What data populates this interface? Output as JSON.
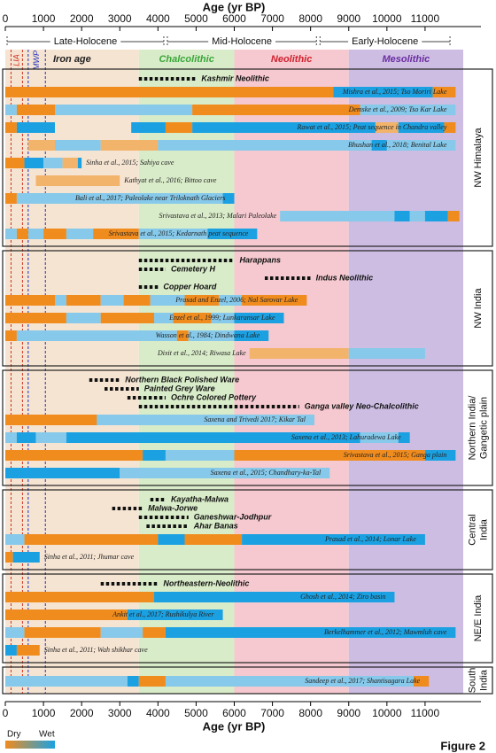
{
  "chart_data": {
    "type": "timeline",
    "x_label": "Age (yr BP)",
    "xlim": [
      0,
      12000
    ],
    "xticks": [
      0,
      1000,
      2000,
      3000,
      4000,
      5000,
      6000,
      7000,
      8000,
      9000,
      10000,
      11000
    ],
    "figure_label": "Figure 2",
    "legend": {
      "dry": "Dry",
      "wet": "Wet",
      "dry_color": "#f08c1e",
      "wet_color": "#1ba1e2"
    },
    "periods": [
      {
        "name": "Late-Holocene",
        "from": 0,
        "to": 4200
      },
      {
        "name": "Mid-Holocene",
        "from": 4200,
        "to": 8200
      },
      {
        "name": "Early-Holocene",
        "from": 8200,
        "to": 11700
      }
    ],
    "zones": [
      {
        "name": "Iron age",
        "from": 0,
        "to": 3500,
        "color": "#f6e4d2",
        "text_color": "#222222"
      },
      {
        "name": "Chalcolithic",
        "from": 3500,
        "to": 6000,
        "color": "#d9ecc9",
        "text_color": "#3aa63a"
      },
      {
        "name": "Neolithic",
        "from": 6000,
        "to": 9000,
        "color": "#f5c9cf",
        "text_color": "#d0202e"
      },
      {
        "name": "Mesolithic",
        "from": 9000,
        "to": 12000,
        "color": "#cdbde3",
        "text_color": "#6a2ca0"
      }
    ],
    "events": [
      {
        "name": "LIA",
        "from": 150,
        "to": 450,
        "color": "#d03020"
      },
      {
        "name": "MWP",
        "from": 600,
        "to": 1050,
        "color": "#2030c0"
      }
    ],
    "regions": [
      {
        "name_lines": [
          "NW Himalaya"
        ],
        "cultures": [
          {
            "name": "Kashmir Neolithic",
            "from": 3500,
            "to": 5000
          }
        ],
        "records": [
          {
            "label": "Mishra et al., 2015; Tso Moriri Lake",
            "segments": [
              [
                0,
                8600,
                "#f08c1e"
              ],
              [
                8600,
                11200,
                "#1ba1e2"
              ],
              [
                11200,
                11800,
                "#f08c1e"
              ]
            ]
          },
          {
            "label": "Demske et al., 2009; Tso Kar Lake",
            "segments": [
              [
                0,
                300,
                "#86c9ea"
              ],
              [
                300,
                1300,
                "#f08c1e"
              ],
              [
                1300,
                4900,
                "#86c9ea"
              ],
              [
                4900,
                9300,
                "#f08c1e"
              ],
              [
                9300,
                11800,
                "#86c9ea"
              ]
            ]
          },
          {
            "label": "Rawat et al., 2015; Peat sequence in Chandra valley",
            "segments": [
              [
                0,
                300,
                "#f08c1e"
              ],
              [
                300,
                1300,
                "#1ba1e2"
              ],
              [
                3300,
                4200,
                "#1ba1e2"
              ],
              [
                4200,
                4900,
                "#f08c1e"
              ],
              [
                4900,
                9700,
                "#1ba1e2"
              ],
              [
                9700,
                10300,
                "#f2b36b"
              ],
              [
                10300,
                11500,
                "#1ba1e2"
              ],
              [
                11500,
                11800,
                "#f08c1e"
              ]
            ]
          },
          {
            "label": "Bhushan et al., 2018; Benital Lake",
            "segments": [
              [
                600,
                1300,
                "#f2b36b"
              ],
              [
                1300,
                2500,
                "#86c9ea"
              ],
              [
                2500,
                4000,
                "#f2b36b"
              ],
              [
                4000,
                9600,
                "#86c9ea"
              ],
              [
                9600,
                10000,
                "#1ba1e2"
              ],
              [
                10000,
                11800,
                "#86c9ea"
              ]
            ]
          },
          {
            "label": "Sinha et al., 2015; Sahiya cave",
            "segments": [
              [
                0,
                500,
                "#f08c1e"
              ],
              [
                500,
                1000,
                "#1ba1e2"
              ],
              [
                1000,
                1500,
                "#86c9ea"
              ],
              [
                1500,
                1900,
                "#f2b36b"
              ],
              [
                1900,
                2000,
                "#1ba1e2"
              ]
            ]
          },
          {
            "label": "Kathyat et al., 2016; Bittoo cave",
            "segments": [
              [
                800,
                3000,
                "#f2b36b"
              ]
            ]
          },
          {
            "label": "Bali et al., 2017; Paleolake near Triloknath Glaciers",
            "segments": [
              [
                0,
                300,
                "#f08c1e"
              ],
              [
                300,
                5700,
                "#86c9ea"
              ],
              [
                5700,
                6000,
                "#1ba1e2"
              ]
            ]
          },
          {
            "label": "Srivastava et al., 2013; Malari Paleolake",
            "segments": [
              [
                7200,
                10200,
                "#86c9ea"
              ],
              [
                10200,
                10600,
                "#1ba1e2"
              ],
              [
                10600,
                11000,
                "#86c9ea"
              ],
              [
                11000,
                11600,
                "#1ba1e2"
              ],
              [
                11600,
                11900,
                "#f08c1e"
              ]
            ]
          },
          {
            "label": "Srivastava et al., 2015; Kedarnath peat sequence",
            "segments": [
              [
                0,
                300,
                "#86c9ea"
              ],
              [
                300,
                600,
                "#f08c1e"
              ],
              [
                600,
                1000,
                "#86c9ea"
              ],
              [
                1000,
                1600,
                "#f08c1e"
              ],
              [
                1600,
                2300,
                "#86c9ea"
              ],
              [
                2300,
                3500,
                "#f08c1e"
              ],
              [
                3500,
                5300,
                "#86c9ea"
              ],
              [
                5300,
                6600,
                "#1ba1e2"
              ]
            ]
          }
        ]
      },
      {
        "name_lines": [
          "NW India"
        ],
        "cultures": [
          {
            "name": "Harappans",
            "from": 3500,
            "to": 6000
          },
          {
            "name": "Cemetery H",
            "from": 3500,
            "to": 4200
          },
          {
            "name": "Indus Neolithic",
            "from": 6800,
            "to": 8000
          },
          {
            "name": "Copper Hoard",
            "from": 3500,
            "to": 4000
          }
        ],
        "records": [
          {
            "label": "Prasad and Enzel, 2006; Nal Sarovar Lake",
            "segments": [
              [
                0,
                1300,
                "#f08c1e"
              ],
              [
                1300,
                1600,
                "#86c9ea"
              ],
              [
                1600,
                2500,
                "#f08c1e"
              ],
              [
                2500,
                3100,
                "#86c9ea"
              ],
              [
                3100,
                3800,
                "#f08c1e"
              ],
              [
                3800,
                4700,
                "#86c9ea"
              ],
              [
                4700,
                5600,
                "#f08c1e"
              ],
              [
                5600,
                6200,
                "#86c9ea"
              ],
              [
                6200,
                7900,
                "#f08c1e"
              ]
            ]
          },
          {
            "label": "Enzel et al., 1999; Lunkaransar Lake",
            "segments": [
              [
                0,
                1600,
                "#f08c1e"
              ],
              [
                1600,
                2500,
                "#86c9ea"
              ],
              [
                2500,
                3900,
                "#f08c1e"
              ],
              [
                3900,
                4400,
                "#86c9ea"
              ],
              [
                4400,
                5400,
                "#f08c1e"
              ],
              [
                5400,
                6000,
                "#86c9ea"
              ],
              [
                6000,
                7300,
                "#1ba1e2"
              ]
            ]
          },
          {
            "label": "Wasson et al., 1984; Dindwana Lake",
            "segments": [
              [
                0,
                300,
                "#f08c1e"
              ],
              [
                300,
                4500,
                "#86c9ea"
              ],
              [
                4500,
                4800,
                "#f08c1e"
              ],
              [
                4800,
                6000,
                "#86c9ea"
              ],
              [
                6000,
                6900,
                "#1ba1e2"
              ]
            ]
          },
          {
            "label": "Dixit et al., 2014; Riwasa Lake",
            "segments": [
              [
                6400,
                9000,
                "#f2b36b"
              ],
              [
                9000,
                11000,
                "#86c9ea"
              ]
            ]
          }
        ]
      },
      {
        "name_lines": [
          "Northern India/",
          "Gangetic plain"
        ],
        "cultures": [
          {
            "name": "Northern Black Polished Ware",
            "from": 2200,
            "to": 3000
          },
          {
            "name": "Painted Grey Ware",
            "from": 2600,
            "to": 3500
          },
          {
            "name": "Ochre Colored Pottery",
            "from": 3200,
            "to": 4200
          },
          {
            "name": "Ganga valley Neo-Chalcolithic",
            "from": 3500,
            "to": 7700
          }
        ],
        "records": [
          {
            "label": "Saxena and Trivedi 2017; Kikar Tal",
            "segments": [
              [
                0,
                2400,
                "#f08c1e"
              ],
              [
                2400,
                8100,
                "#86c9ea"
              ]
            ]
          },
          {
            "label": "Saxena et al., 2013; Lahuradewa Lake",
            "segments": [
              [
                0,
                300,
                "#86c9ea"
              ],
              [
                300,
                800,
                "#1ba1e2"
              ],
              [
                800,
                1600,
                "#86c9ea"
              ],
              [
                1600,
                9300,
                "#1ba1e2"
              ],
              [
                9300,
                10300,
                "#86c9ea"
              ],
              [
                10300,
                10600,
                "#1ba1e2"
              ]
            ]
          },
          {
            "label": "Srivastava et al., 2015; Ganga plain",
            "segments": [
              [
                0,
                3600,
                "#f08c1e"
              ],
              [
                3600,
                4200,
                "#1ba1e2"
              ],
              [
                4200,
                6000,
                "#86c9ea"
              ],
              [
                6000,
                11000,
                "#f08c1e"
              ],
              [
                11000,
                11800,
                "#1ba1e2"
              ]
            ]
          },
          {
            "label": "Saxena et al., 2015; Chandhary-ka-Tal",
            "segments": [
              [
                0,
                3000,
                "#1ba1e2"
              ],
              [
                3000,
                8500,
                "#86c9ea"
              ]
            ]
          }
        ]
      },
      {
        "name_lines": [
          "Central",
          "India"
        ],
        "cultures": [
          {
            "name": "Kayatha-Malwa",
            "from": 3800,
            "to": 4200
          },
          {
            "name": "Malwa-Jorwe",
            "from": 2800,
            "to": 3600
          },
          {
            "name": "Ganeshwar-Jodhpur",
            "from": 3500,
            "to": 4800
          },
          {
            "name": "Ahar Banas",
            "from": 3700,
            "to": 4800
          }
        ],
        "records": [
          {
            "label": "Prasad et al., 2014; Lonar Lake",
            "segments": [
              [
                0,
                500,
                "#86c9ea"
              ],
              [
                500,
                4000,
                "#f08c1e"
              ],
              [
                4000,
                4700,
                "#1ba1e2"
              ],
              [
                4700,
                6200,
                "#f08c1e"
              ],
              [
                6200,
                11000,
                "#1ba1e2"
              ]
            ]
          },
          {
            "label": "Sinha et al., 2011; Jhumar cave",
            "segments": [
              [
                0,
                200,
                "#f08c1e"
              ],
              [
                200,
                900,
                "#1ba1e2"
              ]
            ]
          }
        ]
      },
      {
        "name_lines": [
          "NE/E India"
        ],
        "cultures": [
          {
            "name": "Northeastern-Neolithic",
            "from": 2500,
            "to": 4000
          }
        ],
        "records": [
          {
            "label": "Ghosh et al., 2014; Ziro basin",
            "segments": [
              [
                0,
                3900,
                "#f08c1e"
              ],
              [
                3900,
                10200,
                "#1ba1e2"
              ]
            ]
          },
          {
            "label": "Ankit et al., 2017; Rushikulya River",
            "segments": [
              [
                0,
                3200,
                "#f08c1e"
              ],
              [
                3200,
                5700,
                "#1ba1e2"
              ]
            ]
          },
          {
            "label": "Berkelhammer et al., 2012; Mawmluh cave",
            "segments": [
              [
                0,
                500,
                "#86c9ea"
              ],
              [
                500,
                2500,
                "#f08c1e"
              ],
              [
                2500,
                3600,
                "#86c9ea"
              ],
              [
                3600,
                4200,
                "#f08c1e"
              ],
              [
                4200,
                11800,
                "#1ba1e2"
              ]
            ]
          },
          {
            "label": "Sinha et al., 2011; Wah shikhar cave",
            "segments": [
              [
                0,
                300,
                "#1ba1e2"
              ],
              [
                300,
                900,
                "#f08c1e"
              ]
            ]
          }
        ]
      },
      {
        "name_lines": [
          "South",
          "India"
        ],
        "cultures": [],
        "records": [
          {
            "label": "Sandeep et al., 2017; Shantisagara Lake",
            "segments": [
              [
                0,
                3200,
                "#86c9ea"
              ],
              [
                3200,
                3500,
                "#1ba1e2"
              ],
              [
                3500,
                4200,
                "#f08c1e"
              ],
              [
                4200,
                10700,
                "#86c9ea"
              ],
              [
                10700,
                11100,
                "#f08c1e"
              ]
            ]
          }
        ]
      }
    ]
  }
}
